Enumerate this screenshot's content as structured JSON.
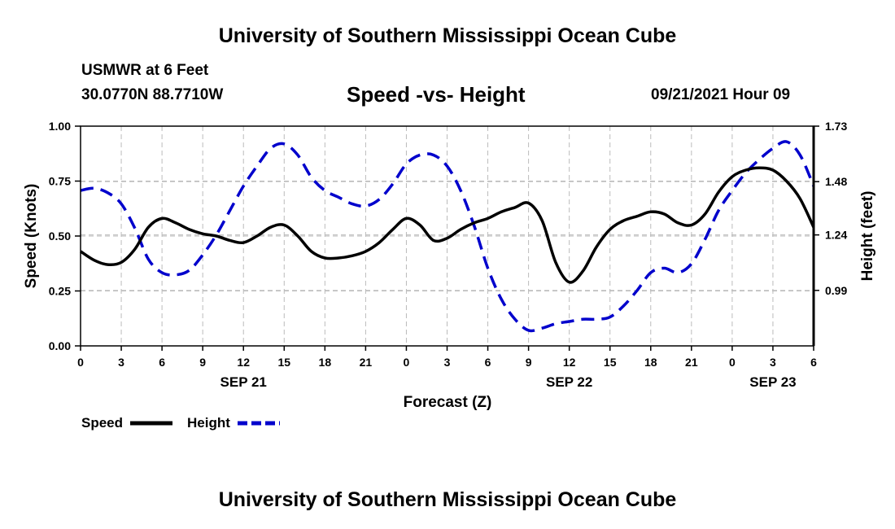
{
  "page": {
    "top_title": "University of Southern Mississippi Ocean Cube",
    "bottom_title": "University of Southern Mississippi Ocean Cube",
    "station_line1": "USMWR at 6 Feet",
    "station_line2": "30.0770N  88.7710W",
    "datetime": "09/21/2021 Hour 09"
  },
  "colors": {
    "speed": "#000000",
    "height": "#0000cc",
    "grid": "#bbbbbb"
  },
  "chart_data": {
    "type": "line",
    "title": "Speed -vs- Height",
    "xlabel": "Forecast (Z)",
    "ylabel": "Speed (Knots)",
    "y2label": "Height (feet)",
    "x_range": [
      0,
      54
    ],
    "ylim": [
      0,
      1
    ],
    "y2lim": [
      0.74,
      1.73
    ],
    "x_ticks": [
      0,
      3,
      6,
      9,
      12,
      15,
      18,
      21,
      24,
      27,
      30,
      33,
      36,
      39,
      42,
      45,
      48,
      51,
      54
    ],
    "x_tick_labels": [
      "0",
      "3",
      "6",
      "9",
      "12",
      "15",
      "18",
      "21",
      "0",
      "3",
      "6",
      "9",
      "12",
      "15",
      "18",
      "21",
      "0",
      "3",
      "6"
    ],
    "date_labels": [
      {
        "x": 12,
        "label": "SEP 21"
      },
      {
        "x": 36,
        "label": "SEP 22"
      },
      {
        "x": 51,
        "label": "SEP 23"
      }
    ],
    "y_ticks": [
      0,
      0.25,
      0.5,
      0.75,
      1.0
    ],
    "y_tick_labels": [
      "0.00",
      "0.25",
      "0.50",
      "0.75",
      "1.00"
    ],
    "y2_ticks": [
      0.99,
      1.24,
      1.48,
      1.73
    ],
    "y2_tick_labels": [
      "0.99",
      "1.24",
      "1.48",
      "1.73"
    ],
    "grid": true,
    "legend_position": "bottom-left",
    "series": [
      {
        "name": "Speed",
        "axis": "left",
        "style": "solid",
        "x": [
          0,
          1,
          2,
          3,
          4,
          5,
          6,
          7,
          8,
          9,
          10,
          11,
          12,
          13,
          14,
          15,
          16,
          17,
          18,
          19,
          20,
          21,
          22,
          23,
          24,
          25,
          26,
          27,
          28,
          29,
          30,
          31,
          32,
          33,
          34,
          35,
          36,
          37,
          38,
          39,
          40,
          41,
          42,
          43,
          44,
          45,
          46,
          47,
          48,
          49,
          50,
          51,
          52,
          53,
          54
        ],
        "values": [
          0.43,
          0.39,
          0.37,
          0.38,
          0.44,
          0.54,
          0.58,
          0.56,
          0.53,
          0.51,
          0.5,
          0.48,
          0.47,
          0.5,
          0.54,
          0.55,
          0.5,
          0.43,
          0.4,
          0.4,
          0.41,
          0.43,
          0.47,
          0.53,
          0.58,
          0.55,
          0.48,
          0.49,
          0.53,
          0.56,
          0.58,
          0.61,
          0.63,
          0.65,
          0.57,
          0.38,
          0.29,
          0.34,
          0.45,
          0.53,
          0.57,
          0.59,
          0.61,
          0.6,
          0.56,
          0.55,
          0.6,
          0.7,
          0.77,
          0.8,
          0.81,
          0.8,
          0.75,
          0.67,
          0.54
        ]
      },
      {
        "name": "Height",
        "axis": "right",
        "style": "dashed",
        "x": [
          0,
          1,
          2,
          3,
          4,
          5,
          6,
          7,
          8,
          9,
          10,
          11,
          12,
          13,
          14,
          15,
          16,
          17,
          18,
          19,
          20,
          21,
          22,
          23,
          24,
          25,
          26,
          27,
          28,
          29,
          30,
          31,
          32,
          33,
          34,
          35,
          36,
          37,
          38,
          39,
          40,
          41,
          42,
          43,
          44,
          45,
          46,
          47,
          48,
          49,
          50,
          51,
          52,
          53,
          54
        ],
        "values": [
          1.44,
          1.45,
          1.43,
          1.38,
          1.27,
          1.13,
          1.07,
          1.06,
          1.08,
          1.15,
          1.24,
          1.35,
          1.46,
          1.55,
          1.63,
          1.65,
          1.6,
          1.5,
          1.44,
          1.41,
          1.38,
          1.37,
          1.4,
          1.47,
          1.56,
          1.6,
          1.6,
          1.55,
          1.44,
          1.28,
          1.09,
          0.95,
          0.86,
          0.81,
          0.82,
          0.84,
          0.85,
          0.86,
          0.86,
          0.87,
          0.92,
          0.99,
          1.07,
          1.09,
          1.07,
          1.11,
          1.22,
          1.35,
          1.44,
          1.52,
          1.58,
          1.63,
          1.66,
          1.6,
          1.46
        ]
      }
    ]
  }
}
